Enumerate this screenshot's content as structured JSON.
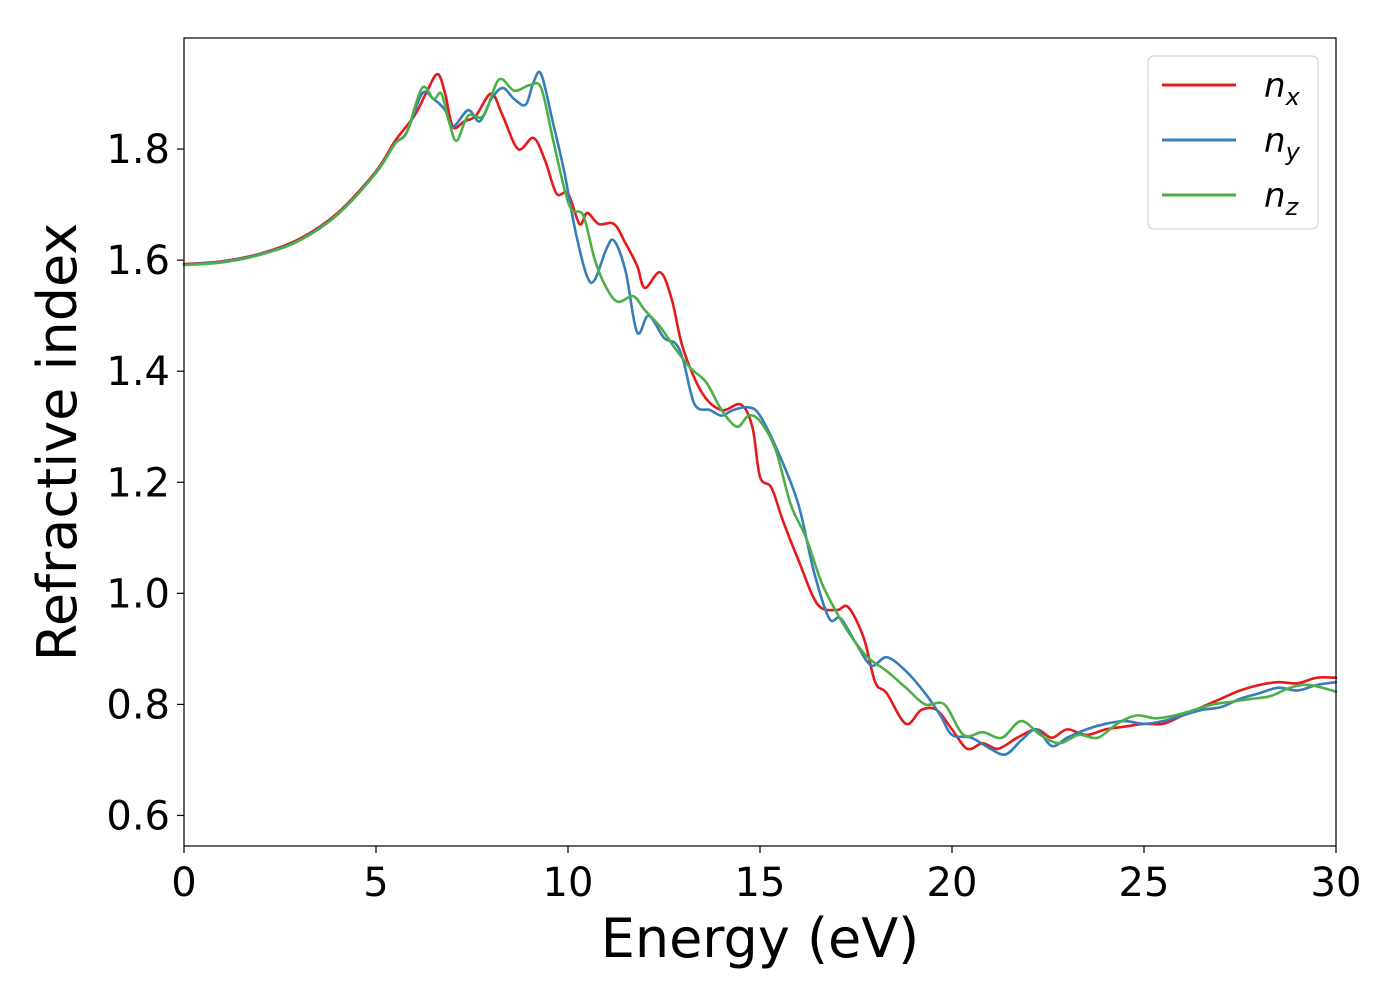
{
  "chart_data": {
    "type": "line",
    "title": "",
    "xlabel": "Energy (eV)",
    "ylabel": "Refractive index",
    "xlim": [
      0,
      30
    ],
    "ylim": [
      0.545,
      2.0
    ],
    "xticks": [
      "0",
      "5",
      "10",
      "15",
      "20",
      "25",
      "30"
    ],
    "yticks": [
      "0.6",
      "0.8",
      "1.0",
      "1.2",
      "1.4",
      "1.6",
      "1.8"
    ],
    "grid": false,
    "legend_position": "top-right",
    "series": [
      {
        "name": "n",
        "subscript": "x",
        "color": "#e41a1c",
        "points": [
          [
            0,
            1.593
          ],
          [
            1,
            1.598
          ],
          [
            2,
            1.612
          ],
          [
            3,
            1.638
          ],
          [
            4,
            1.685
          ],
          [
            5,
            1.76
          ],
          [
            5.5,
            1.815
          ],
          [
            6,
            1.86
          ],
          [
            6.3,
            1.9
          ],
          [
            6.6,
            1.935
          ],
          [
            6.8,
            1.9
          ],
          [
            7,
            1.84
          ],
          [
            7.3,
            1.85
          ],
          [
            7.6,
            1.86
          ],
          [
            8,
            1.9
          ],
          [
            8.3,
            1.86
          ],
          [
            8.7,
            1.8
          ],
          [
            9.1,
            1.82
          ],
          [
            9.4,
            1.78
          ],
          [
            9.7,
            1.72
          ],
          [
            10,
            1.72
          ],
          [
            10.3,
            1.665
          ],
          [
            10.5,
            1.685
          ],
          [
            10.8,
            1.665
          ],
          [
            11.2,
            1.665
          ],
          [
            11.5,
            1.63
          ],
          [
            11.8,
            1.59
          ],
          [
            12,
            1.55
          ],
          [
            12.4,
            1.578
          ],
          [
            12.7,
            1.53
          ],
          [
            13,
            1.44
          ],
          [
            13.5,
            1.36
          ],
          [
            14,
            1.33
          ],
          [
            14.5,
            1.34
          ],
          [
            14.8,
            1.3
          ],
          [
            15,
            1.21
          ],
          [
            15.3,
            1.19
          ],
          [
            15.6,
            1.13
          ],
          [
            16,
            1.06
          ],
          [
            16.5,
            0.98
          ],
          [
            17,
            0.97
          ],
          [
            17.3,
            0.975
          ],
          [
            17.7,
            0.92
          ],
          [
            18,
            0.84
          ],
          [
            18.3,
            0.82
          ],
          [
            18.8,
            0.765
          ],
          [
            19.2,
            0.79
          ],
          [
            19.6,
            0.79
          ],
          [
            20,
            0.755
          ],
          [
            20.4,
            0.72
          ],
          [
            20.8,
            0.73
          ],
          [
            21.2,
            0.72
          ],
          [
            21.7,
            0.74
          ],
          [
            22.2,
            0.755
          ],
          [
            22.6,
            0.74
          ],
          [
            23,
            0.755
          ],
          [
            23.5,
            0.745
          ],
          [
            24,
            0.755
          ],
          [
            24.5,
            0.76
          ],
          [
            25,
            0.765
          ],
          [
            25.5,
            0.765
          ],
          [
            26,
            0.78
          ],
          [
            26.5,
            0.795
          ],
          [
            27,
            0.81
          ],
          [
            27.5,
            0.825
          ],
          [
            28,
            0.835
          ],
          [
            28.5,
            0.84
          ],
          [
            29,
            0.838
          ],
          [
            29.5,
            0.848
          ],
          [
            30,
            0.848
          ]
        ]
      },
      {
        "name": "n",
        "subscript": "y",
        "color": "#377eb8",
        "points": [
          [
            0,
            1.592
          ],
          [
            1,
            1.597
          ],
          [
            2,
            1.611
          ],
          [
            3,
            1.636
          ],
          [
            4,
            1.683
          ],
          [
            5,
            1.758
          ],
          [
            5.5,
            1.81
          ],
          [
            5.8,
            1.83
          ],
          [
            6.2,
            1.9
          ],
          [
            6.5,
            1.89
          ],
          [
            6.8,
            1.87
          ],
          [
            7,
            1.84
          ],
          [
            7.4,
            1.87
          ],
          [
            7.7,
            1.85
          ],
          [
            8,
            1.89
          ],
          [
            8.3,
            1.91
          ],
          [
            8.6,
            1.89
          ],
          [
            8.9,
            1.88
          ],
          [
            9.1,
            1.92
          ],
          [
            9.3,
            1.935
          ],
          [
            9.6,
            1.85
          ],
          [
            9.9,
            1.76
          ],
          [
            10.2,
            1.65
          ],
          [
            10.5,
            1.57
          ],
          [
            10.7,
            1.565
          ],
          [
            11,
            1.62
          ],
          [
            11.2,
            1.635
          ],
          [
            11.5,
            1.58
          ],
          [
            11.8,
            1.47
          ],
          [
            12.1,
            1.5
          ],
          [
            12.5,
            1.46
          ],
          [
            12.8,
            1.45
          ],
          [
            13,
            1.42
          ],
          [
            13.3,
            1.34
          ],
          [
            13.7,
            1.33
          ],
          [
            14,
            1.32
          ],
          [
            14.3,
            1.33
          ],
          [
            14.7,
            1.335
          ],
          [
            15,
            1.32
          ],
          [
            15.5,
            1.25
          ],
          [
            16,
            1.16
          ],
          [
            16.4,
            1.04
          ],
          [
            16.8,
            0.955
          ],
          [
            17.1,
            0.955
          ],
          [
            17.5,
            0.91
          ],
          [
            17.9,
            0.87
          ],
          [
            18.3,
            0.885
          ],
          [
            18.8,
            0.86
          ],
          [
            19.3,
            0.82
          ],
          [
            19.7,
            0.78
          ],
          [
            20,
            0.745
          ],
          [
            20.5,
            0.74
          ],
          [
            21,
            0.72
          ],
          [
            21.4,
            0.71
          ],
          [
            21.8,
            0.735
          ],
          [
            22.2,
            0.755
          ],
          [
            22.6,
            0.725
          ],
          [
            23,
            0.74
          ],
          [
            23.5,
            0.755
          ],
          [
            24,
            0.765
          ],
          [
            24.5,
            0.77
          ],
          [
            25,
            0.765
          ],
          [
            25.5,
            0.77
          ],
          [
            26,
            0.78
          ],
          [
            26.5,
            0.79
          ],
          [
            27,
            0.795
          ],
          [
            27.5,
            0.81
          ],
          [
            28,
            0.82
          ],
          [
            28.5,
            0.83
          ],
          [
            29,
            0.825
          ],
          [
            29.5,
            0.835
          ],
          [
            30,
            0.84
          ]
        ]
      },
      {
        "name": "n",
        "subscript": "z",
        "color": "#4daf4a",
        "points": [
          [
            0,
            1.591
          ],
          [
            1,
            1.596
          ],
          [
            2,
            1.61
          ],
          [
            3,
            1.635
          ],
          [
            4,
            1.682
          ],
          [
            5,
            1.757
          ],
          [
            5.5,
            1.81
          ],
          [
            5.8,
            1.83
          ],
          [
            6.2,
            1.91
          ],
          [
            6.5,
            1.89
          ],
          [
            6.7,
            1.9
          ],
          [
            6.9,
            1.85
          ],
          [
            7.1,
            1.815
          ],
          [
            7.4,
            1.86
          ],
          [
            7.8,
            1.86
          ],
          [
            8.2,
            1.925
          ],
          [
            8.6,
            1.905
          ],
          [
            9,
            1.915
          ],
          [
            9.3,
            1.91
          ],
          [
            9.6,
            1.82
          ],
          [
            9.9,
            1.73
          ],
          [
            10.1,
            1.69
          ],
          [
            10.4,
            1.68
          ],
          [
            10.7,
            1.6
          ],
          [
            11,
            1.55
          ],
          [
            11.3,
            1.525
          ],
          [
            11.7,
            1.535
          ],
          [
            12,
            1.51
          ],
          [
            12.4,
            1.48
          ],
          [
            12.8,
            1.44
          ],
          [
            13.2,
            1.405
          ],
          [
            13.6,
            1.38
          ],
          [
            14,
            1.33
          ],
          [
            14.4,
            1.3
          ],
          [
            14.7,
            1.32
          ],
          [
            15,
            1.31
          ],
          [
            15.4,
            1.26
          ],
          [
            15.8,
            1.16
          ],
          [
            16.2,
            1.1
          ],
          [
            16.6,
            1.02
          ],
          [
            17,
            0.965
          ],
          [
            17.4,
            0.92
          ],
          [
            17.8,
            0.885
          ],
          [
            18.3,
            0.86
          ],
          [
            18.8,
            0.83
          ],
          [
            19.3,
            0.8
          ],
          [
            19.8,
            0.8
          ],
          [
            20.3,
            0.745
          ],
          [
            20.8,
            0.75
          ],
          [
            21.3,
            0.74
          ],
          [
            21.8,
            0.77
          ],
          [
            22.3,
            0.745
          ],
          [
            22.8,
            0.73
          ],
          [
            23.3,
            0.745
          ],
          [
            23.8,
            0.74
          ],
          [
            24.3,
            0.765
          ],
          [
            24.8,
            0.78
          ],
          [
            25.3,
            0.775
          ],
          [
            25.8,
            0.78
          ],
          [
            26.3,
            0.79
          ],
          [
            26.8,
            0.8
          ],
          [
            27.3,
            0.805
          ],
          [
            27.8,
            0.81
          ],
          [
            28.3,
            0.815
          ],
          [
            28.8,
            0.83
          ],
          [
            29.3,
            0.835
          ],
          [
            30,
            0.823
          ]
        ]
      }
    ]
  }
}
